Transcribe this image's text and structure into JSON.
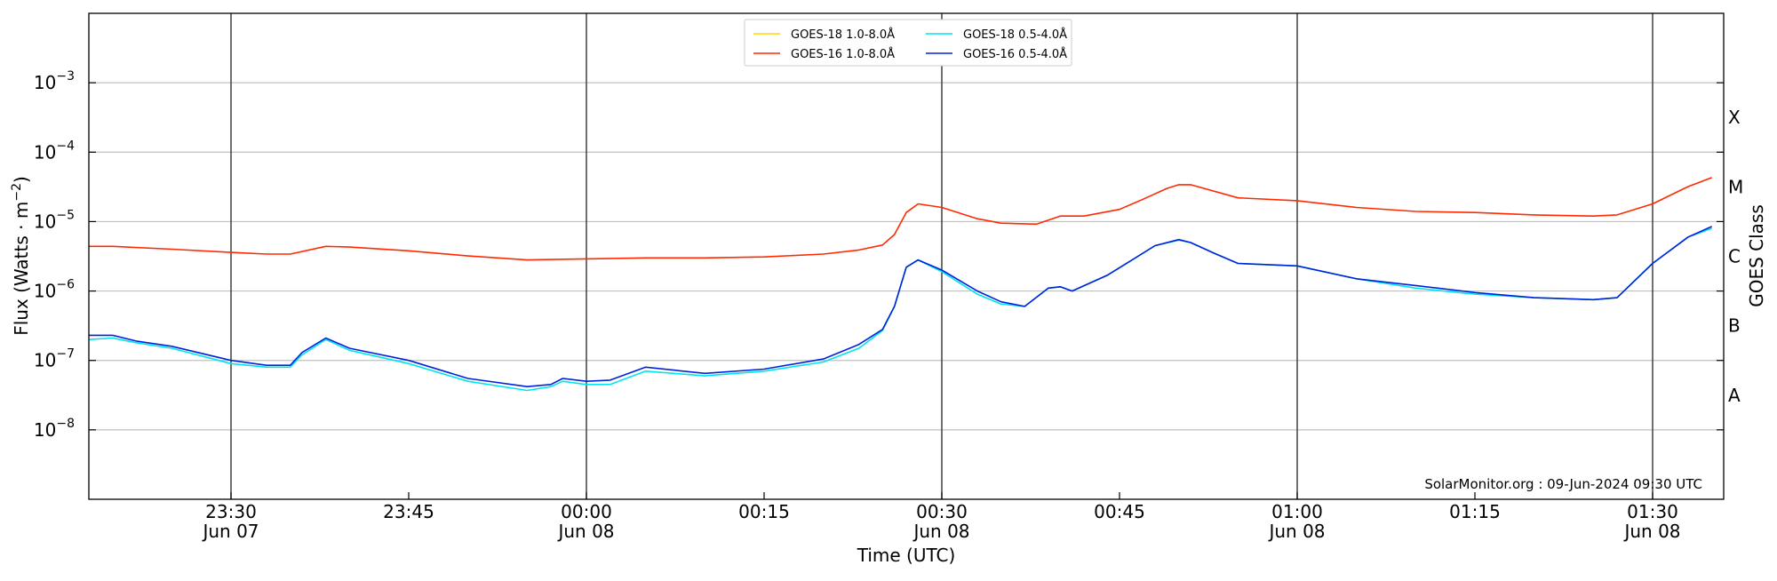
{
  "chart_data": {
    "type": "line",
    "xlabel": "Time (UTC)",
    "ylabel": "Flux (Watts · m",
    "ylabel_sup": "−2",
    "ylabel_close": ")",
    "right_label": "GOES Class",
    "yscale": "log",
    "ylim": [
      1e-09,
      0.01
    ],
    "xlim": [
      "2024-06-07T23:18",
      "2024-06-08T01:36"
    ],
    "grid": "horizontal at each decade",
    "y_ticks": [
      {
        "value": 1e-08,
        "base": "10",
        "exp": "−8"
      },
      {
        "value": 1e-07,
        "base": "10",
        "exp": "−7"
      },
      {
        "value": 1e-06,
        "base": "10",
        "exp": "−6"
      },
      {
        "value": 1e-05,
        "base": "10",
        "exp": "−5"
      },
      {
        "value": 0.0001,
        "base": "10",
        "exp": "−4"
      },
      {
        "value": 0.001,
        "base": "10",
        "exp": "−3"
      }
    ],
    "x_ticks": [
      {
        "time": "2024-06-07T23:30",
        "label": "23:30",
        "sublabel": "Jun 07"
      },
      {
        "time": "2024-06-07T23:45",
        "label": "23:45",
        "sublabel": ""
      },
      {
        "time": "2024-06-08T00:00",
        "label": "00:00",
        "sublabel": "Jun 08"
      },
      {
        "time": "2024-06-08T00:15",
        "label": "00:15",
        "sublabel": ""
      },
      {
        "time": "2024-06-08T00:30",
        "label": "00:30",
        "sublabel": "Jun 08"
      },
      {
        "time": "2024-06-08T00:45",
        "label": "00:45",
        "sublabel": ""
      },
      {
        "time": "2024-06-08T01:00",
        "label": "01:00",
        "sublabel": "Jun 08"
      },
      {
        "time": "2024-06-08T01:15",
        "label": "01:15",
        "sublabel": ""
      },
      {
        "time": "2024-06-08T01:30",
        "label": "01:30",
        "sublabel": "Jun 08"
      }
    ],
    "vlines": [
      "2024-06-07T23:30",
      "2024-06-08T00:00",
      "2024-06-08T00:30",
      "2024-06-08T01:00",
      "2024-06-08T01:30"
    ],
    "goes_classes": [
      {
        "label": "A",
        "value": 3.16e-08
      },
      {
        "label": "B",
        "value": 3.16e-07
      },
      {
        "label": "C",
        "value": 3.16e-06
      },
      {
        "label": "M",
        "value": 3.16e-05
      },
      {
        "label": "X",
        "value": 0.000316
      }
    ],
    "legend_position": "top-center",
    "annotation": "SolarMonitor.org : 09-Jun-2024 09:30 UTC",
    "series": [
      {
        "name": "GOES-18 1.0-8.0Å",
        "color": "#ffd700",
        "x": [
          "2024-06-07T23:18",
          "2024-06-08T01:35"
        ],
        "y": [
          4.5e-06,
          4.3e-05
        ],
        "note_visible": false
      },
      {
        "name": "GOES-16 1.0-8.0Å",
        "color": "#ff2a00",
        "x": [
          "2024-06-07T23:18",
          "2024-06-07T23:20",
          "2024-06-07T23:25",
          "2024-06-07T23:30",
          "2024-06-07T23:33",
          "2024-06-07T23:35",
          "2024-06-07T23:38",
          "2024-06-07T23:40",
          "2024-06-07T23:45",
          "2024-06-07T23:50",
          "2024-06-07T23:55",
          "2024-06-08T00:00",
          "2024-06-08T00:05",
          "2024-06-08T00:10",
          "2024-06-08T00:15",
          "2024-06-08T00:20",
          "2024-06-08T00:23",
          "2024-06-08T00:25",
          "2024-06-08T00:26",
          "2024-06-08T00:27",
          "2024-06-08T00:28",
          "2024-06-08T00:30",
          "2024-06-08T00:33",
          "2024-06-08T00:35",
          "2024-06-08T00:38",
          "2024-06-08T00:40",
          "2024-06-08T00:42",
          "2024-06-08T00:45",
          "2024-06-08T00:47",
          "2024-06-08T00:49",
          "2024-06-08T00:50",
          "2024-06-08T00:51",
          "2024-06-08T00:55",
          "2024-06-08T01:00",
          "2024-06-08T01:05",
          "2024-06-08T01:10",
          "2024-06-08T01:15",
          "2024-06-08T01:20",
          "2024-06-08T01:25",
          "2024-06-08T01:27",
          "2024-06-08T01:30",
          "2024-06-08T01:33",
          "2024-06-08T01:35"
        ],
        "y": [
          4.4e-06,
          4.4e-06,
          4e-06,
          3.6e-06,
          3.4e-06,
          3.4e-06,
          4.4e-06,
          4.3e-06,
          3.8e-06,
          3.2e-06,
          2.8e-06,
          2.9e-06,
          3e-06,
          3e-06,
          3.1e-06,
          3.4e-06,
          3.9e-06,
          4.6e-06,
          6.5e-06,
          1.35e-05,
          1.8e-05,
          1.6e-05,
          1.1e-05,
          9.5e-06,
          9.2e-06,
          1.2e-05,
          1.2e-05,
          1.5e-05,
          2.1e-05,
          3e-05,
          3.4e-05,
          3.4e-05,
          2.2e-05,
          2e-05,
          1.6e-05,
          1.4e-05,
          1.35e-05,
          1.25e-05,
          1.2e-05,
          1.25e-05,
          1.8e-05,
          3.2e-05,
          4.3e-05
        ]
      },
      {
        "name": "GOES-18 0.5-4.0Å",
        "color": "#00e5ee",
        "x": [
          "2024-06-07T23:18",
          "2024-06-07T23:20",
          "2024-06-07T23:22",
          "2024-06-07T23:25",
          "2024-06-07T23:30",
          "2024-06-07T23:33",
          "2024-06-07T23:35",
          "2024-06-07T23:36",
          "2024-06-07T23:38",
          "2024-06-07T23:40",
          "2024-06-07T23:45",
          "2024-06-07T23:50",
          "2024-06-07T23:55",
          "2024-06-07T23:57",
          "2024-06-07T23:58",
          "2024-06-08T00:00",
          "2024-06-08T00:02",
          "2024-06-08T00:05",
          "2024-06-08T00:10",
          "2024-06-08T00:15",
          "2024-06-08T00:20",
          "2024-06-08T00:23",
          "2024-06-08T00:25",
          "2024-06-08T00:26",
          "2024-06-08T00:27",
          "2024-06-08T00:28",
          "2024-06-08T00:30",
          "2024-06-08T00:33",
          "2024-06-08T00:35",
          "2024-06-08T00:37",
          "2024-06-08T00:39",
          "2024-06-08T00:40",
          "2024-06-08T00:41",
          "2024-06-08T00:44",
          "2024-06-08T00:48",
          "2024-06-08T00:50",
          "2024-06-08T00:51",
          "2024-06-08T00:53",
          "2024-06-08T00:55",
          "2024-06-08T01:00",
          "2024-06-08T01:05",
          "2024-06-08T01:10",
          "2024-06-08T01:15",
          "2024-06-08T01:20",
          "2024-06-08T01:25",
          "2024-06-08T01:27",
          "2024-06-08T01:30",
          "2024-06-08T01:33",
          "2024-06-08T01:35"
        ],
        "y": [
          2e-07,
          2.1e-07,
          1.8e-07,
          1.5e-07,
          9e-08,
          8e-08,
          8e-08,
          1.2e-07,
          2e-07,
          1.4e-07,
          9e-08,
          5e-08,
          3.7e-08,
          4.2e-08,
          5e-08,
          4.5e-08,
          4.5e-08,
          7e-08,
          6e-08,
          7e-08,
          9.5e-08,
          1.5e-07,
          2.7e-07,
          6e-07,
          2.2e-06,
          2.8e-06,
          1.9e-06,
          9e-07,
          6.5e-07,
          6e-07,
          1.1e-06,
          1.15e-06,
          1e-06,
          1.7e-06,
          4.5e-06,
          5.4e-06,
          5e-06,
          3.5e-06,
          2.5e-06,
          2.3e-06,
          1.5e-06,
          1.1e-06,
          9e-07,
          8e-07,
          7.5e-07,
          8e-07,
          2.5e-06,
          6e-06,
          8e-06
        ]
      },
      {
        "name": "GOES-16 0.5-4.0Å",
        "color": "#0022dd",
        "x": [
          "2024-06-07T23:18",
          "2024-06-07T23:20",
          "2024-06-07T23:22",
          "2024-06-07T23:25",
          "2024-06-07T23:30",
          "2024-06-07T23:33",
          "2024-06-07T23:35",
          "2024-06-07T23:36",
          "2024-06-07T23:38",
          "2024-06-07T23:40",
          "2024-06-07T23:45",
          "2024-06-07T23:50",
          "2024-06-07T23:55",
          "2024-06-07T23:57",
          "2024-06-07T23:58",
          "2024-06-08T00:00",
          "2024-06-08T00:02",
          "2024-06-08T00:05",
          "2024-06-08T00:10",
          "2024-06-08T00:15",
          "2024-06-08T00:20",
          "2024-06-08T00:23",
          "2024-06-08T00:25",
          "2024-06-08T00:26",
          "2024-06-08T00:27",
          "2024-06-08T00:28",
          "2024-06-08T00:30",
          "2024-06-08T00:33",
          "2024-06-08T00:35",
          "2024-06-08T00:37",
          "2024-06-08T00:39",
          "2024-06-08T00:40",
          "2024-06-08T00:41",
          "2024-06-08T00:44",
          "2024-06-08T00:48",
          "2024-06-08T00:50",
          "2024-06-08T00:51",
          "2024-06-08T00:53",
          "2024-06-08T00:55",
          "2024-06-08T01:00",
          "2024-06-08T01:05",
          "2024-06-08T01:10",
          "2024-06-08T01:15",
          "2024-06-08T01:20",
          "2024-06-08T01:25",
          "2024-06-08T01:27",
          "2024-06-08T01:30",
          "2024-06-08T01:33",
          "2024-06-08T01:35"
        ],
        "y": [
          2.3e-07,
          2.3e-07,
          1.9e-07,
          1.6e-07,
          1e-07,
          8.5e-08,
          8.5e-08,
          1.3e-07,
          2.1e-07,
          1.5e-07,
          1e-07,
          5.5e-08,
          4.2e-08,
          4.5e-08,
          5.5e-08,
          5e-08,
          5.2e-08,
          8e-08,
          6.5e-08,
          7.5e-08,
          1.05e-07,
          1.7e-07,
          2.8e-07,
          6e-07,
          2.2e-06,
          2.8e-06,
          2e-06,
          1e-06,
          7e-07,
          6e-07,
          1.1e-06,
          1.15e-06,
          1e-06,
          1.7e-06,
          4.5e-06,
          5.5e-06,
          5e-06,
          3.5e-06,
          2.5e-06,
          2.3e-06,
          1.5e-06,
          1.2e-06,
          9.5e-07,
          8e-07,
          7.5e-07,
          8e-07,
          2.5e-06,
          6e-06,
          8.5e-06
        ]
      }
    ]
  }
}
